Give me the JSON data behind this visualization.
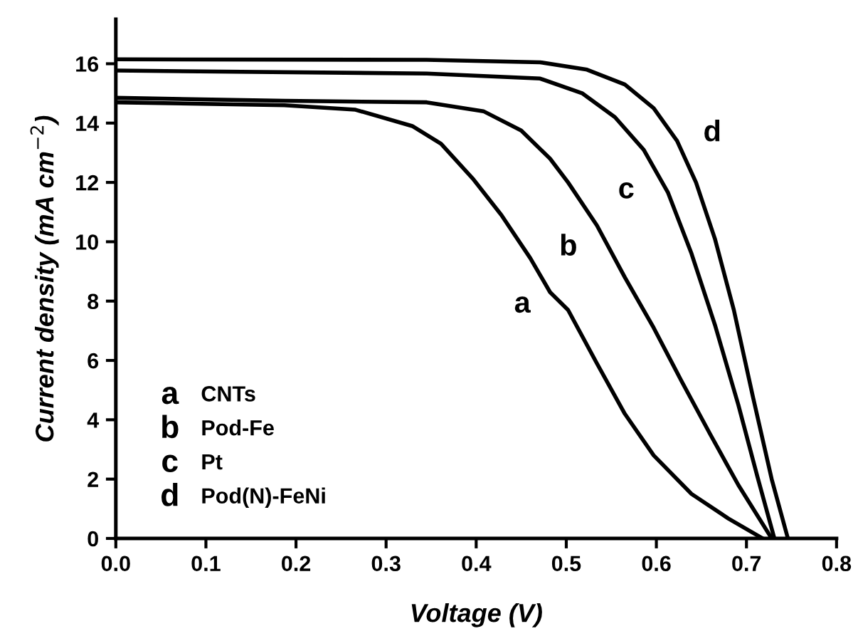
{
  "chart_data": {
    "type": "line",
    "xlabel": "Voltage (V)",
    "ylabel": "Current density (mA cm$^{−2}$)",
    "xlim": [
      0,
      0.8
    ],
    "xticks": [
      {
        "value": 0,
        "label": "0.0"
      },
      0.1,
      0.2,
      0.3,
      0.4,
      0.5,
      0.6,
      0.7,
      0.8
    ],
    "ylim": [
      0,
      17.5
    ],
    "yticks": [
      0,
      2,
      4,
      6,
      8,
      10,
      12,
      14,
      16
    ],
    "grid": false,
    "marker": "none",
    "line_style": "solid",
    "annotations": [
      "CNTs",
      "Pod-Fe",
      "Pt",
      "Pod(N)-FeNi"
    ],
    "series": [
      {
        "name": "a",
        "color": "#000000",
        "x": [
          0,
          0.187,
          0.266,
          0.329,
          0.361,
          0.397,
          0.428,
          0.46,
          0.482,
          0.502,
          0.534,
          0.565,
          0.597,
          0.639,
          0.68,
          0.718
        ],
        "values": [
          14.7,
          14.6,
          14.45,
          13.9,
          13.3,
          12.1,
          10.9,
          9.45,
          8.3,
          7.7,
          5.9,
          4.2,
          2.8,
          1.5,
          0.67,
          0
        ]
      },
      {
        "name": "b",
        "color": "#000000",
        "x": [
          0,
          0.187,
          0.345,
          0.408,
          0.45,
          0.482,
          0.502,
          0.534,
          0.565,
          0.597,
          0.628,
          0.66,
          0.691,
          0.728
        ],
        "values": [
          14.85,
          14.75,
          14.7,
          14.4,
          13.75,
          12.8,
          12.0,
          10.55,
          8.8,
          7.1,
          5.3,
          3.5,
          1.8,
          0
        ]
      },
      {
        "name": "c",
        "color": "#000000",
        "x": [
          0,
          0.345,
          0.471,
          0.518,
          0.554,
          0.586,
          0.613,
          0.639,
          0.665,
          0.691,
          0.712,
          0.731
        ],
        "values": [
          15.77,
          15.67,
          15.5,
          15.0,
          14.2,
          13.1,
          11.65,
          9.6,
          7.2,
          4.5,
          2.1,
          0
        ]
      },
      {
        "name": "d",
        "color": "#000000",
        "x": [
          0,
          0.345,
          0.471,
          0.523,
          0.565,
          0.597,
          0.623,
          0.644,
          0.665,
          0.686,
          0.707,
          0.728,
          0.746
        ],
        "values": [
          16.15,
          16.13,
          16.05,
          15.8,
          15.3,
          14.5,
          13.4,
          12.0,
          10.1,
          7.7,
          4.8,
          2.0,
          0
        ]
      }
    ]
  }
}
